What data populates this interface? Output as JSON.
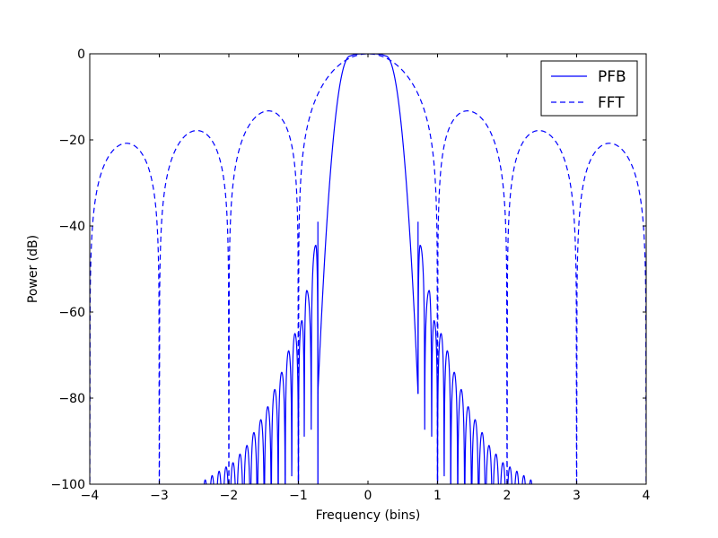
{
  "chart_data": {
    "type": "line",
    "title": "",
    "xlabel": "Frequency (bins)",
    "ylabel": "Power (dB)",
    "xlim": [
      -4,
      4
    ],
    "ylim": [
      -100,
      0
    ],
    "x_ticks": [
      "−4",
      "−3",
      "−2",
      "−1",
      "0",
      "1",
      "2",
      "3",
      "4"
    ],
    "y_ticks": [
      "0",
      "−20",
      "−40",
      "−60",
      "−80",
      "−100"
    ],
    "grid": false,
    "legend_position": "top-right",
    "line_color": "#0000ff",
    "series": [
      {
        "name": "PFB",
        "style": "solid",
        "main_lobe": {
          "peak_db": 0,
          "passband_edge": 0.25,
          "edge_db": -0.5,
          "stop_edge": 0.72,
          "stop_db": -79
        },
        "sidelobes": [
          {
            "center": 0.75,
            "level": -44.5,
            "null": 0.84,
            "null_db": -89.5
          },
          {
            "center": 0.88,
            "level": -55
          },
          {
            "center": 0.95,
            "level": -62
          },
          {
            "center": 1.05,
            "level": -65
          },
          {
            "center": 1.14,
            "level": -69
          },
          {
            "center": 1.24,
            "level": -74
          },
          {
            "center": 1.34,
            "level": -78
          },
          {
            "center": 1.44,
            "level": -82
          },
          {
            "center": 1.54,
            "level": -85
          },
          {
            "center": 1.64,
            "level": -88
          },
          {
            "center": 1.74,
            "level": -91
          },
          {
            "center": 1.84,
            "level": -93
          },
          {
            "center": 1.94,
            "level": -95
          },
          {
            "center": 2.04,
            "level": -96
          },
          {
            "center": 2.14,
            "level": -97
          },
          {
            "center": 2.24,
            "level": -98
          },
          {
            "center": 2.34,
            "level": -99
          }
        ]
      },
      {
        "name": "FFT",
        "style": "dashed",
        "main_lobe": {
          "peak_db": 0,
          "null": 1.0
        },
        "sidelobe_peaks": [
          {
            "center": 1.43,
            "level": -13.5
          },
          {
            "center": 2.46,
            "level": -18
          },
          {
            "center": 3.47,
            "level": -21
          }
        ],
        "nulls": [
          1,
          2,
          3,
          4
        ]
      }
    ]
  }
}
